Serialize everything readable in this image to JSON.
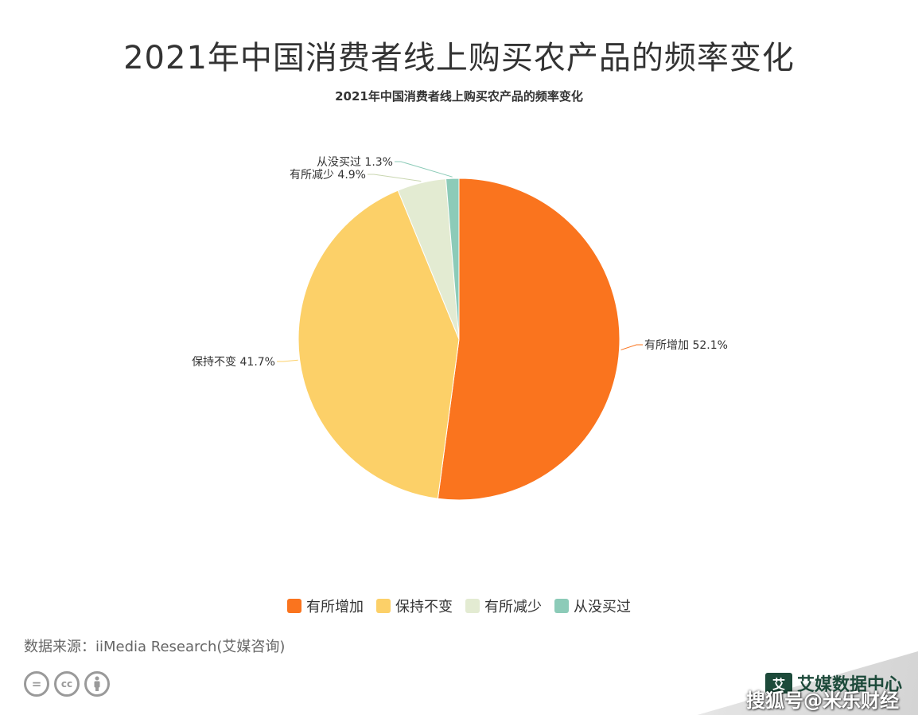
{
  "header": {
    "title": "2021年中国消费者线上购买农产品的频率变化",
    "subtitle": "2021年中国消费者线上购买农产品的频率变化"
  },
  "chart_data": {
    "type": "pie",
    "title": "2021年中国消费者线上购买农产品的频率变化",
    "unit": "%",
    "slices": [
      {
        "label": "有所增加",
        "value": 52.1,
        "color": "#fa741e",
        "display": "有所增加 52.1%"
      },
      {
        "label": "保持不变",
        "value": 41.7,
        "color": "#fcd068",
        "display": "保持不变 41.7%"
      },
      {
        "label": "有所减少",
        "value": 4.9,
        "color": "#e3ebd2",
        "display": "有所减少 4.9%"
      },
      {
        "label": "从没买过",
        "value": 1.3,
        "color": "#8ccbb8",
        "display": "从没买过 1.3%"
      }
    ],
    "legend_position": "bottom"
  },
  "footer": {
    "source": "数据来源：iiMedia Research(艾媒咨询)",
    "cc_icons": [
      "equals-icon",
      "cc-icon",
      "person-icon"
    ],
    "brand": "艾媒数据中心",
    "brand_logo_text": "艾",
    "watermark": "搜狐号@米乐财经"
  }
}
